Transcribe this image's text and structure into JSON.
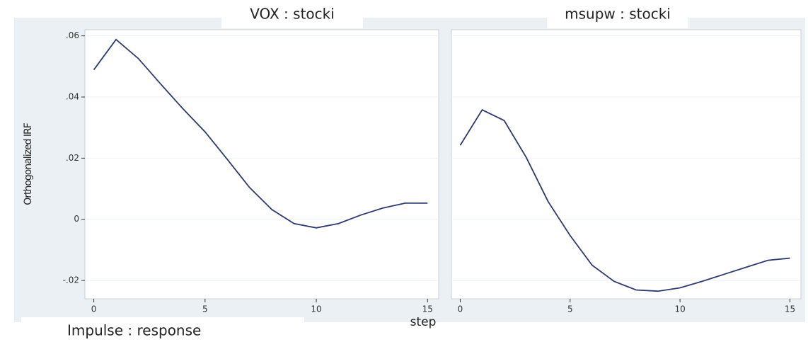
{
  "chart_data": [
    {
      "type": "line",
      "title": "VOX : stocki",
      "ylabel": "Orthogonalized IRF",
      "note": "Impulse : response",
      "x": [
        0,
        1,
        2,
        3,
        4,
        5,
        6,
        7,
        8,
        9,
        10,
        11,
        12,
        13,
        14,
        15
      ],
      "series": [
        {
          "color": "#2c3a6e",
          "values": [
            0.0489,
            0.0588,
            0.0526,
            0.0443,
            0.0362,
            0.0286,
            0.0196,
            0.0104,
            0.0032,
            -0.0014,
            -0.0028,
            -0.0014,
            0.0014,
            0.0037,
            0.0053,
            0.0053
          ]
        }
      ],
      "xlim": [
        -0.4,
        15.5
      ],
      "ylim": [
        -0.026,
        0.062
      ],
      "xticks": [
        0,
        5,
        10,
        15
      ],
      "yticks": [
        {
          "value": 0.06,
          "label": ".06"
        },
        {
          "value": 0.04,
          "label": ".04"
        },
        {
          "value": 0.02,
          "label": ".02"
        },
        0,
        {
          "value": -0.02,
          "label": "-.02"
        }
      ],
      "grid": true
    },
    {
      "type": "line",
      "title": "msupw : stocki",
      "xlabel": "step",
      "x": [
        0,
        1,
        2,
        3,
        4,
        5,
        6,
        7,
        8,
        9,
        10,
        11,
        12,
        13,
        14,
        15
      ],
      "series": [
        {
          "color": "#2c3a6e",
          "values": [
            0.0242,
            0.0358,
            0.0323,
            0.0203,
            0.0058,
            -0.0053,
            -0.015,
            -0.0203,
            -0.0231,
            -0.0235,
            -0.0224,
            -0.0203,
            -0.018,
            -0.0157,
            -0.0134,
            -0.0127
          ]
        }
      ],
      "xlim": [
        -0.4,
        15.5
      ],
      "ylim": [
        -0.026,
        0.062
      ],
      "xticks": [
        0,
        5,
        10,
        15
      ],
      "grid": true
    }
  ]
}
